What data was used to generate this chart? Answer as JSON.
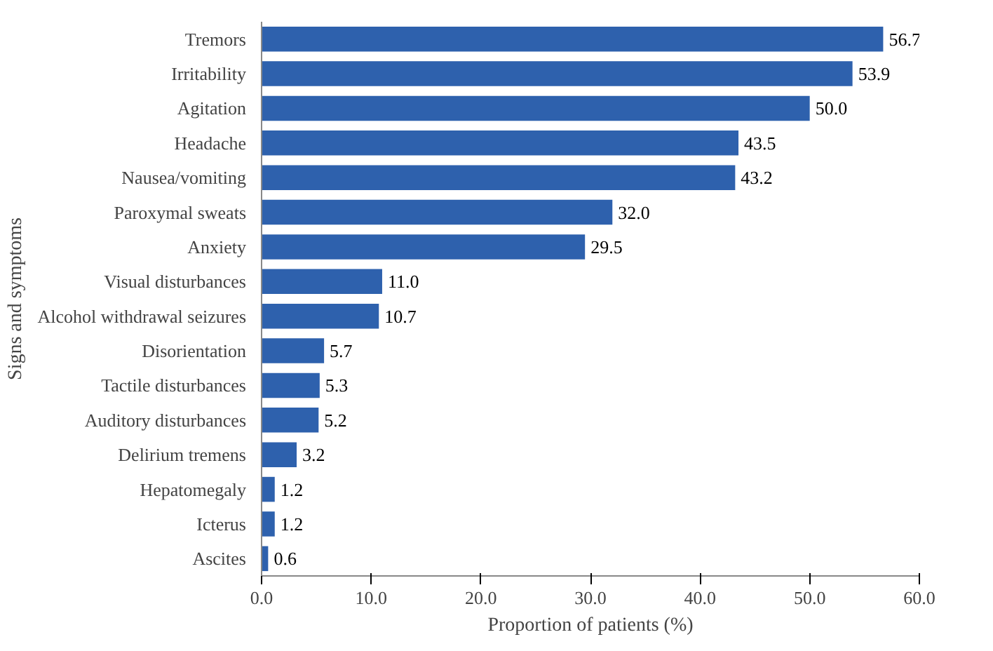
{
  "chart_data": {
    "type": "bar",
    "orientation": "horizontal",
    "xlabel": "Proportion of patients (%)",
    "ylabel": "Signs and symptoms",
    "categories": [
      "Tremors",
      "Irritability",
      "Agitation",
      "Headache",
      "Nausea/vomiting",
      "Paroxymal sweats",
      "Anxiety",
      "Visual disturbances",
      "Alcohol withdrawal seizures",
      "Disorientation",
      "Tactile disturbances",
      "Auditory disturbances",
      "Delirium tremens",
      "Hepatomegaly",
      "Icterus",
      "Ascites"
    ],
    "values": [
      56.7,
      53.9,
      50.0,
      43.5,
      43.2,
      32.0,
      29.5,
      11.0,
      10.7,
      5.7,
      5.3,
      5.2,
      3.2,
      1.2,
      1.2,
      0.6
    ],
    "value_labels": [
      "56.7",
      "53.9",
      "50.0",
      "43.5",
      "43.2",
      "32.0",
      "29.5",
      "11.0",
      "10.7",
      "5.7",
      "5.3",
      "5.2",
      "3.2",
      "1.2",
      "1.2",
      "0.6"
    ],
    "color": "#2e61ad",
    "xlim": [
      0,
      60
    ],
    "xticks": [
      {
        "value": 0,
        "label": "0.0"
      },
      {
        "value": 10,
        "label": "10.0"
      },
      {
        "value": 20,
        "label": "20.0"
      },
      {
        "value": 30,
        "label": "30.0"
      },
      {
        "value": 40,
        "label": "40.0"
      },
      {
        "value": 50,
        "label": "50.0"
      },
      {
        "value": 60,
        "label": "60.0"
      }
    ],
    "grid": false
  }
}
